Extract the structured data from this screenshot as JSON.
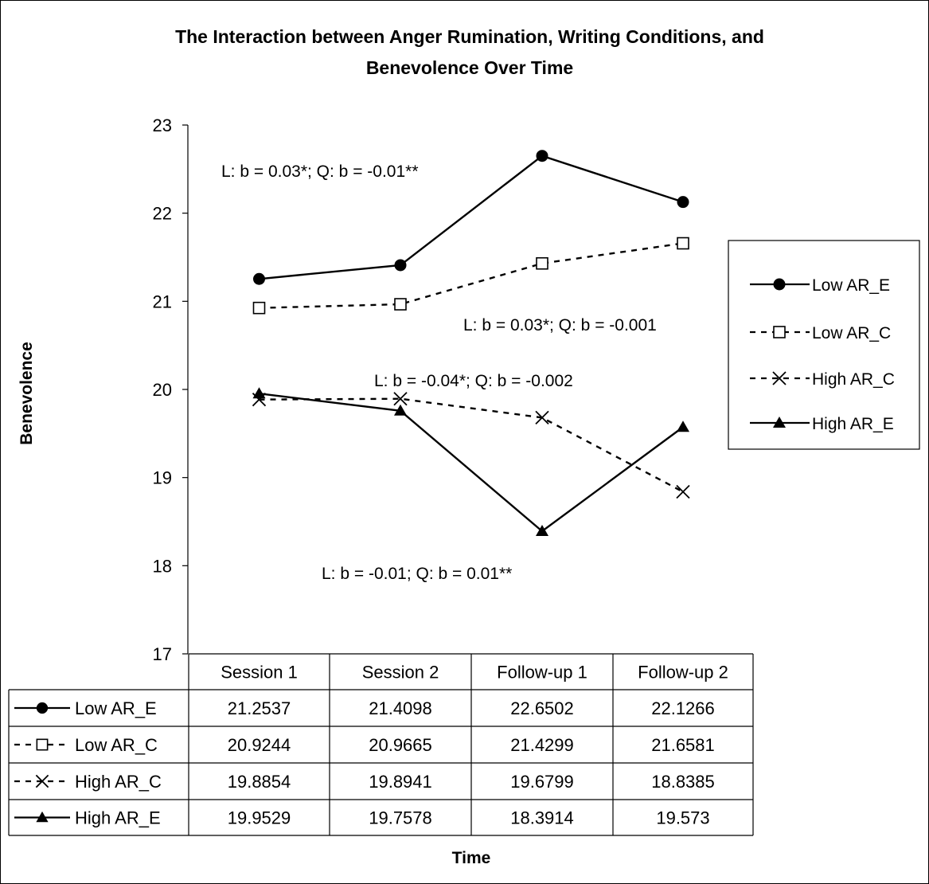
{
  "chart_data": {
    "type": "line",
    "title_line1": "The Interaction between Anger Rumination, Writing Conditions, and",
    "title_line2": "Benevolence Over Time",
    "xlabel": "Time",
    "ylabel": "Benevolence",
    "ylim": [
      17,
      23
    ],
    "yticks": [
      17,
      18,
      19,
      20,
      21,
      22,
      23
    ],
    "categories": [
      "Session 1",
      "Session 2",
      "Follow-up 1",
      "Follow-up 2"
    ],
    "series": [
      {
        "name": "Low AR_E",
        "marker": "filled-circle",
        "line": "solid",
        "values": [
          21.2537,
          21.4098,
          22.6502,
          22.1266
        ],
        "labels": [
          "21.2537",
          "21.4098",
          "22.6502",
          "22.1266"
        ]
      },
      {
        "name": "Low AR_C",
        "marker": "open-square",
        "line": "dashed",
        "values": [
          20.9244,
          20.9665,
          21.4299,
          21.6581
        ],
        "labels": [
          "20.9244",
          "20.9665",
          "21.4299",
          "21.6581"
        ]
      },
      {
        "name": "High AR_C",
        "marker": "x-cross",
        "line": "dashed",
        "values": [
          19.8854,
          19.8941,
          19.6799,
          18.8385
        ],
        "labels": [
          "19.8854",
          "19.8941",
          "19.6799",
          "18.8385"
        ]
      },
      {
        "name": "High AR_E",
        "marker": "filled-triangle",
        "line": "solid",
        "values": [
          19.9529,
          19.7578,
          18.3914,
          19.573
        ],
        "labels": [
          "19.9529",
          "19.7578",
          "18.3914",
          "19.573"
        ]
      }
    ],
    "annotations": [
      {
        "text": "L: b = 0.03*; Q: b = -0.01**",
        "near_series": "Low AR_E"
      },
      {
        "text": "L: b = 0.03*; Q: b = -0.001",
        "near_series": "Low AR_C"
      },
      {
        "text": "L: b = -0.04*; Q: b = -0.002",
        "near_series": "High AR_C"
      },
      {
        "text": "L: b = -0.01; Q: b = 0.01**",
        "near_series": "High AR_E"
      }
    ],
    "legend_position": "right",
    "grid": false,
    "data_table": true,
    "line_color": "#000000"
  }
}
